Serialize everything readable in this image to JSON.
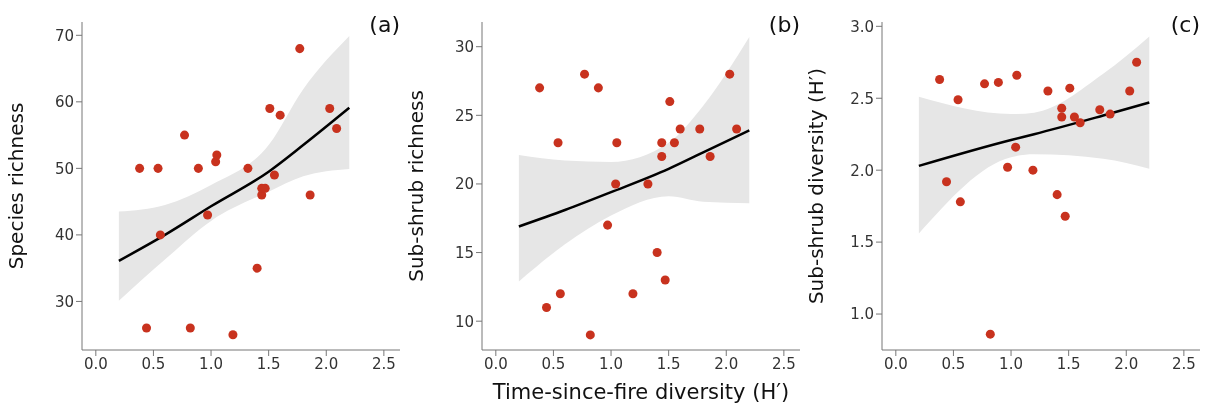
{
  "chart_data": [
    {
      "type": "scatter",
      "ylabel": "Species richness",
      "annotations": [
        "(a)"
      ],
      "line_style": "solid",
      "xlim": [
        -0.12,
        2.64
      ],
      "xticks": [
        {
          "value": 0,
          "label": "0.0"
        },
        {
          "value": 0.5,
          "label": "0.5"
        },
        {
          "value": 1,
          "label": "1.0"
        },
        {
          "value": 1.5,
          "label": "1.5"
        },
        {
          "value": 2,
          "label": "2.0"
        },
        {
          "value": 2.5,
          "label": "2.5"
        }
      ],
      "ylim": [
        22.7,
        72
      ],
      "yticks": [
        30,
        40,
        50,
        60,
        70
      ],
      "series": [
        {
          "marker": "circle",
          "color": "#c8321e",
          "x": [
            0.38,
            0.44,
            0.54,
            0.56,
            0.77,
            0.82,
            0.89,
            0.97,
            1.04,
            1.05,
            1.19,
            1.32,
            1.4,
            1.44,
            1.44,
            1.47,
            1.51,
            1.55,
            1.6,
            1.77,
            1.86,
            2.03,
            2.09
          ],
          "values": [
            50,
            26,
            50,
            40,
            55,
            26,
            50,
            43,
            51,
            52,
            25,
            50,
            35,
            46,
            47,
            47,
            59,
            49,
            58,
            68,
            46,
            59,
            56
          ]
        },
        {
          "type": "line",
          "color": "#000000",
          "x": [
            0.2,
            0.6,
            1.0,
            1.5,
            1.8,
            2.2
          ],
          "values": [
            36.1,
            40,
            44.3,
            49.5,
            53.5,
            59.1
          ],
          "lower": [
            30.1,
            36.3,
            42.1,
            46.5,
            48.8,
            49.9
          ],
          "upper": [
            43.5,
            44.5,
            47.5,
            53.5,
            61.9,
            69.9
          ]
        }
      ]
    },
    {
      "type": "scatter",
      "ylabel": "Sub-shrub richness",
      "xlabel": "Time-since-fire diversity (H′)",
      "annotations": [
        "(b)"
      ],
      "line_style": "solid",
      "xlim": [
        -0.12,
        2.64
      ],
      "xticks": [
        {
          "value": 0,
          "label": "0.0"
        },
        {
          "value": 0.5,
          "label": "0.5"
        },
        {
          "value": 1,
          "label": "1.0"
        },
        {
          "value": 1.5,
          "label": "1.5"
        },
        {
          "value": 2,
          "label": "2.0"
        },
        {
          "value": 2.5,
          "label": "2.5"
        }
      ],
      "ylim": [
        7.9,
        31.8
      ],
      "yticks": [
        10,
        15,
        20,
        25,
        30
      ],
      "series": [
        {
          "marker": "circle",
          "color": "#c8321e",
          "x": [
            0.38,
            0.44,
            0.54,
            0.56,
            0.77,
            0.82,
            0.89,
            0.97,
            1.04,
            1.05,
            1.19,
            1.32,
            1.4,
            1.44,
            1.44,
            1.47,
            1.51,
            1.55,
            1.6,
            1.77,
            1.86,
            2.03,
            2.09
          ],
          "values": [
            27,
            11,
            23,
            12,
            28,
            9,
            27,
            17,
            20,
            23,
            12,
            20,
            15,
            22,
            23,
            13,
            26,
            23,
            24,
            24,
            22,
            28,
            24
          ]
        },
        {
          "type": "line",
          "color": "#000000",
          "x": [
            0.2,
            0.6,
            1.0,
            1.5,
            1.8,
            2.2
          ],
          "values": [
            16.9,
            18.1,
            19.4,
            21.1,
            22.3,
            23.9
          ],
          "lower": [
            12.9,
            15.6,
            17.7,
            19.1,
            18.7,
            18.6
          ],
          "upper": [
            22.1,
            21.7,
            21.6,
            23.0,
            25.7,
            30.7
          ]
        }
      ]
    },
    {
      "type": "scatter",
      "ylabel": "Sub-shrub diversity (H′)",
      "annotations": [
        "(c)"
      ],
      "line_style": "solid",
      "xlim": [
        -0.12,
        2.64
      ],
      "xticks": [
        {
          "value": 0,
          "label": "0.0"
        },
        {
          "value": 0.5,
          "label": "0.5"
        },
        {
          "value": 1,
          "label": "1.0"
        },
        {
          "value": 1.5,
          "label": "1.5"
        },
        {
          "value": 2,
          "label": "2.0"
        },
        {
          "value": 2.5,
          "label": "2.5"
        }
      ],
      "ylim": [
        0.75,
        3.03
      ],
      "yticks": [
        {
          "value": 1,
          "label": "1.0"
        },
        {
          "value": 1.5,
          "label": "1.5"
        },
        {
          "value": 2,
          "label": "2.0"
        },
        {
          "value": 2.5,
          "label": "2.5"
        },
        {
          "value": 3,
          "label": "3.0"
        }
      ],
      "series": [
        {
          "marker": "circle",
          "color": "#c8321e",
          "x": [
            0.38,
            0.44,
            0.54,
            0.56,
            0.77,
            0.82,
            0.89,
            0.97,
            1.04,
            1.05,
            1.19,
            1.32,
            1.4,
            1.44,
            1.44,
            1.47,
            1.51,
            1.55,
            1.6,
            1.77,
            1.86,
            2.03,
            2.09
          ],
          "values": [
            2.63,
            1.92,
            2.49,
            1.78,
            2.6,
            0.86,
            2.61,
            2.02,
            2.16,
            2.66,
            2.0,
            2.55,
            1.83,
            2.43,
            2.37,
            1.68,
            2.57,
            2.37,
            2.33,
            2.42,
            2.39,
            2.55,
            2.75
          ]
        },
        {
          "type": "line",
          "color": "#000000",
          "x": [
            0.2,
            1.0,
            1.2,
            1.8,
            2.2
          ],
          "values": [
            2.03,
            2.21,
            2.25,
            2.38,
            2.47
          ],
          "lower": [
            1.56,
            2.09,
            2.11,
            2.08,
            2.01
          ],
          "upper": [
            2.51,
            2.39,
            2.4,
            2.67,
            2.93
          ]
        }
      ]
    }
  ]
}
